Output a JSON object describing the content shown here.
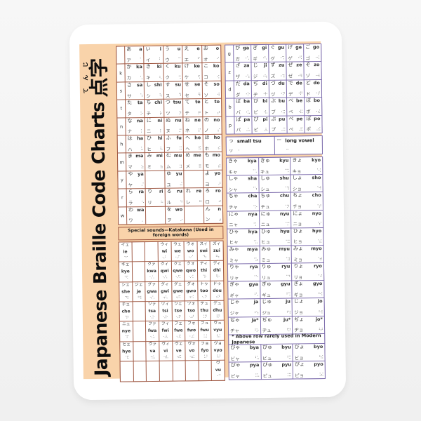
{
  "title": {
    "latin": "Japanese Braille Code Charts",
    "kanji": "点字",
    "furigana": "てんじ"
  },
  "colors": {
    "page_bg": "#f5f5f5",
    "sticker": "#ffffff",
    "poster_bg": "#f9d3aa",
    "left_border": "#a05a45",
    "right_border": "#7f6fae"
  },
  "left_table": {
    "rows": [
      {
        "label": "",
        "cells": [
          {
            "h": "あ",
            "r": "a",
            "k": "ア",
            "b": "⠁"
          },
          {
            "h": "い",
            "r": "i",
            "k": "イ",
            "b": "⠃"
          },
          {
            "h": "う",
            "r": "u",
            "k": "ウ",
            "b": "⠉"
          },
          {
            "h": "え",
            "r": "e",
            "k": "エ",
            "b": "⠋"
          },
          {
            "h": "お",
            "r": "o",
            "k": "オ",
            "b": "⠊"
          }
        ]
      },
      {
        "label": "k",
        "cells": [
          {
            "h": "か",
            "r": "ka",
            "k": "カ",
            "b": "⠡"
          },
          {
            "h": "き",
            "r": "ki",
            "k": "キ",
            "b": "⠣"
          },
          {
            "h": "く",
            "r": "ku",
            "k": "ク",
            "b": "⠩"
          },
          {
            "h": "け",
            "r": "ke",
            "k": "ケ",
            "b": "⠫"
          },
          {
            "h": "こ",
            "r": "ko",
            "k": "コ",
            "b": "⠪"
          }
        ]
      },
      {
        "label": "s",
        "cells": [
          {
            "h": "さ",
            "r": "sa",
            "k": "サ",
            "b": "⠱"
          },
          {
            "h": "し",
            "r": "shi",
            "k": "シ",
            "b": "⠳"
          },
          {
            "h": "す",
            "r": "su",
            "k": "ス",
            "b": "⠹"
          },
          {
            "h": "せ",
            "r": "se",
            "k": "セ",
            "b": "⠻"
          },
          {
            "h": "そ",
            "r": "so",
            "k": "ソ",
            "b": "⠺"
          }
        ]
      },
      {
        "label": "t",
        "cells": [
          {
            "h": "た",
            "r": "ta",
            "k": "タ",
            "b": "⠕"
          },
          {
            "h": "ち",
            "r": "chi",
            "k": "チ",
            "b": "⠗"
          },
          {
            "h": "つ",
            "r": "tsu",
            "k": "ツ",
            "b": "⠝"
          },
          {
            "h": "て",
            "r": "te",
            "k": "テ",
            "b": "⠟"
          },
          {
            "h": "と",
            "r": "to",
            "k": "ト",
            "b": "⠞"
          }
        ]
      },
      {
        "label": "n",
        "cells": [
          {
            "h": "な",
            "r": "na",
            "k": "ナ",
            "b": "⠅"
          },
          {
            "h": "に",
            "r": "ni",
            "k": "ニ",
            "b": "⠇"
          },
          {
            "h": "ぬ",
            "r": "nu",
            "k": "ヌ",
            "b": "⠍"
          },
          {
            "h": "ね",
            "r": "ne",
            "k": "ネ",
            "b": "⠏"
          },
          {
            "h": "の",
            "r": "no",
            "k": "ノ",
            "b": "⠎"
          }
        ]
      },
      {
        "label": "h",
        "cells": [
          {
            "h": "は",
            "r": "ha",
            "k": "ハ",
            "b": "⠥"
          },
          {
            "h": "ひ",
            "r": "hi",
            "k": "ヒ",
            "b": "⠧"
          },
          {
            "h": "ふ",
            "r": "fu",
            "k": "フ",
            "b": "⠭"
          },
          {
            "h": "へ",
            "r": "he",
            "k": "ヘ",
            "b": "⠯"
          },
          {
            "h": "ほ",
            "r": "ho",
            "k": "ホ",
            "b": "⠮"
          }
        ]
      },
      {
        "label": "m",
        "cells": [
          {
            "h": "ま",
            "r": "ma",
            "k": "マ",
            "b": "⠵"
          },
          {
            "h": "み",
            "r": "mi",
            "k": "ミ",
            "b": "⠷"
          },
          {
            "h": "む",
            "r": "mu",
            "k": "ム",
            "b": "⠽"
          },
          {
            "h": "め",
            "r": "me",
            "k": "メ",
            "b": "⠿"
          },
          {
            "h": "も",
            "r": "mo",
            "k": "モ",
            "b": "⠾"
          }
        ]
      },
      {
        "label": "y",
        "cells": [
          {
            "h": "や",
            "r": "ya",
            "k": "ヤ",
            "b": "⠌"
          },
          null,
          {
            "h": "ゆ",
            "r": "yu",
            "k": "ユ",
            "b": "⠬"
          },
          null,
          {
            "h": "よ",
            "r": "yo",
            "k": "ヨ",
            "b": "⠜"
          }
        ]
      },
      {
        "label": "r",
        "cells": [
          {
            "h": "ら",
            "r": "ra",
            "k": "ラ",
            "b": "⠑"
          },
          {
            "h": "り",
            "r": "ri",
            "k": "リ",
            "b": "⠓"
          },
          {
            "h": "る",
            "r": "ru",
            "k": "ル",
            "b": "⠙"
          },
          {
            "h": "れ",
            "r": "re",
            "k": "レ",
            "b": "⠛"
          },
          {
            "h": "ろ",
            "r": "ro",
            "k": "ロ",
            "b": "⠚"
          }
        ]
      },
      {
        "label": "w",
        "cells": [
          {
            "h": "わ",
            "r": "wa",
            "k": "ワ",
            "b": "⠄"
          },
          null,
          {
            "h": "を",
            "r": "wo",
            "k": "ヲ",
            "b": "⠔"
          },
          null,
          {
            "h": "ん",
            "r": "n",
            "k": "ン",
            "b": "⠴"
          }
        ]
      }
    ]
  },
  "voiced_table": {
    "rows": [
      {
        "label": "g",
        "cells": [
          {
            "h": "が",
            "r": "ga",
            "k": "ガ",
            "b": "⠐⠡"
          },
          {
            "h": "ぎ",
            "r": "gi",
            "k": "ギ",
            "b": "⠐⠣"
          },
          {
            "h": "ぐ",
            "r": "gu",
            "k": "グ",
            "b": "⠐⠩"
          },
          {
            "h": "げ",
            "r": "ge",
            "k": "ゲ",
            "b": "⠐⠫"
          },
          {
            "h": "ご",
            "r": "go",
            "k": "ゴ",
            "b": "⠐⠪"
          }
        ]
      },
      {
        "label": "z",
        "cells": [
          {
            "h": "ざ",
            "r": "za",
            "k": "ザ",
            "b": "⠐⠱"
          },
          {
            "h": "じ",
            "r": "ji",
            "k": "ジ",
            "b": "⠐⠳"
          },
          {
            "h": "ず",
            "r": "zu",
            "k": "ズ",
            "b": "⠐⠹"
          },
          {
            "h": "ぜ",
            "r": "ze",
            "k": "ゼ",
            "b": "⠐⠻"
          },
          {
            "h": "ぞ",
            "r": "zo",
            "k": "ゾ",
            "b": "⠐⠺"
          }
        ]
      },
      {
        "label": "d",
        "cells": [
          {
            "h": "だ",
            "r": "da",
            "k": "ダ",
            "b": "⠐⠕"
          },
          {
            "h": "ぢ",
            "r": "di",
            "k": "ヂ",
            "b": "⠐⠗"
          },
          {
            "h": "づ",
            "r": "du",
            "k": "ヅ",
            "b": "⠐⠝"
          },
          {
            "h": "で",
            "r": "de",
            "k": "デ",
            "b": "⠐⠟"
          },
          {
            "h": "ど",
            "r": "do",
            "k": "ド",
            "b": "⠐⠞"
          }
        ]
      },
      {
        "label": "b",
        "cells": [
          {
            "h": "ば",
            "r": "ba",
            "k": "バ",
            "b": "⠐⠥"
          },
          {
            "h": "び",
            "r": "bi",
            "k": "ビ",
            "b": "⠐⠧"
          },
          {
            "h": "ぶ",
            "r": "bu",
            "k": "ブ",
            "b": "⠐⠭"
          },
          {
            "h": "べ",
            "r": "be",
            "k": "ベ",
            "b": "⠐⠯"
          },
          {
            "h": "ぼ",
            "r": "bo",
            "k": "ボ",
            "b": "⠐⠮"
          }
        ]
      },
      {
        "label": "p",
        "cells": [
          {
            "h": "ぱ",
            "r": "pa",
            "k": "パ",
            "b": "⠠⠥"
          },
          {
            "h": "ぴ",
            "r": "pi",
            "k": "ピ",
            "b": "⠠⠧"
          },
          {
            "h": "ぷ",
            "r": "pu",
            "k": "プ",
            "b": "⠠⠭"
          },
          {
            "h": "ぺ",
            "r": "pe",
            "k": "ペ",
            "b": "⠠⠯"
          },
          {
            "h": "ぽ",
            "r": "po",
            "k": "ポ",
            "b": "⠠⠮"
          }
        ]
      }
    ]
  },
  "sokuon_row": {
    "small_tsu": {
      "h": "っ",
      "k": "ッ",
      "b": "⠂",
      "label": "small tsu"
    },
    "long_vowel": {
      "h": "ー",
      "k": "",
      "b": "⠒",
      "label": "long vowel"
    }
  },
  "yoon_table": {
    "note": "* Above row rarely used in Modern Japanese",
    "note_row_index": 10,
    "rows": [
      [
        {
          "h": "きゃ",
          "r": "kya",
          "k": "キャ",
          "b": "⠈⠡"
        },
        {
          "h": "きゅ",
          "r": "kyu",
          "k": "キュ",
          "b": "⠈⠩"
        },
        {
          "h": "きょ",
          "r": "kyo",
          "k": "キョ",
          "b": "⠈⠪"
        }
      ],
      [
        {
          "h": "しゃ",
          "r": "sha",
          "k": "シャ",
          "b": "⠈⠱"
        },
        {
          "h": "しゅ",
          "r": "shu",
          "k": "シュ",
          "b": "⠈⠹"
        },
        {
          "h": "しょ",
          "r": "sho",
          "k": "ショ",
          "b": "⠈⠺"
        }
      ],
      [
        {
          "h": "ちゃ",
          "r": "cha",
          "k": "チャ",
          "b": "⠈⠕"
        },
        {
          "h": "ちゅ",
          "r": "chu",
          "k": "チュ",
          "b": "⠈⠝"
        },
        {
          "h": "ちょ",
          "r": "cho",
          "k": "チョ",
          "b": "⠈⠞"
        }
      ],
      [
        {
          "h": "にゃ",
          "r": "nya",
          "k": "ニャ",
          "b": "⠈⠅"
        },
        {
          "h": "にゅ",
          "r": "nyu",
          "k": "ニュ",
          "b": "⠈⠍"
        },
        {
          "h": "にょ",
          "r": "nyo",
          "k": "ニョ",
          "b": "⠈⠎"
        }
      ],
      [
        {
          "h": "ひゃ",
          "r": "hya",
          "k": "ヒャ",
          "b": "⠈⠥"
        },
        {
          "h": "ひゅ",
          "r": "hyu",
          "k": "ヒュ",
          "b": "⠈⠭"
        },
        {
          "h": "ひょ",
          "r": "hyo",
          "k": "ヒョ",
          "b": "⠈⠮"
        }
      ],
      [
        {
          "h": "みゃ",
          "r": "mya",
          "k": "ミャ",
          "b": "⠈⠵"
        },
        {
          "h": "みゅ",
          "r": "myu",
          "k": "ミュ",
          "b": "⠈⠽"
        },
        {
          "h": "みょ",
          "r": "myo",
          "k": "ミョ",
          "b": "⠈⠾"
        }
      ],
      [
        {
          "h": "りゃ",
          "r": "rya",
          "k": "リャ",
          "b": "⠈⠑"
        },
        {
          "h": "りゅ",
          "r": "ryu",
          "k": "リュ",
          "b": "⠈⠙"
        },
        {
          "h": "りょ",
          "r": "ryo",
          "k": "リョ",
          "b": "⠈⠚"
        }
      ],
      [
        {
          "h": "ぎゃ",
          "r": "gya",
          "k": "ギャ",
          "b": "⠘⠡"
        },
        {
          "h": "ぎゅ",
          "r": "gyu",
          "k": "ギュ",
          "b": "⠘⠩"
        },
        {
          "h": "ぎょ",
          "r": "gyo",
          "k": "ギョ",
          "b": "⠘⠪"
        }
      ],
      [
        {
          "h": "じゃ",
          "r": "ja",
          "k": "ジャ",
          "b": "⠘⠱"
        },
        {
          "h": "じゅ",
          "r": "ju",
          "k": "ジュ",
          "b": "⠘⠹"
        },
        {
          "h": "じょ",
          "r": "jo",
          "k": "ジョ",
          "b": "⠘⠺"
        }
      ],
      [
        {
          "h": "ぢゃ",
          "r": "ja*",
          "k": "ヂャ",
          "b": "⠘⠕"
        },
        {
          "h": "ぢゅ",
          "r": "ju*",
          "k": "ヂュ",
          "b": "⠘⠝"
        },
        {
          "h": "ぢょ",
          "r": "jo*",
          "k": "ヂョ",
          "b": "⠘⠞"
        }
      ],
      [
        {
          "h": "びゃ",
          "r": "bya",
          "k": "ビャ",
          "b": "⠘⠥"
        },
        {
          "h": "びゅ",
          "r": "byu",
          "k": "ビュ",
          "b": "⠘⠭"
        },
        {
          "h": "びょ",
          "r": "byo",
          "k": "ビョ",
          "b": "⠘⠮"
        }
      ],
      [
        {
          "h": "ぴゃ",
          "r": "pya",
          "k": "ピャ",
          "b": "⠨⠥"
        },
        {
          "h": "ぴゅ",
          "r": "pyu",
          "k": "ピュ",
          "b": "⠨⠭"
        },
        {
          "h": "ぴょ",
          "r": "pyo",
          "k": "ピョ",
          "b": "⠨⠮"
        }
      ]
    ]
  },
  "special_section": {
    "header": "Special sounds—Katakana (Used in foreign words)",
    "rows": [
      [
        {
          "k": "イェ",
          "r": "ie",
          "b": "⠈⠋"
        },
        null,
        null,
        {
          "k": "ウィ",
          "r": "wi",
          "b": "⠢⠃"
        },
        {
          "k": "ウェ",
          "r": "we",
          "b": "⠢⠋"
        },
        {
          "k": "ウォ",
          "r": "wo",
          "b": "⠢⠊"
        },
        {
          "k": "スィ",
          "r": "swi",
          "b": "⠈⠳"
        },
        {
          "k": "ズィ",
          "r": "zui",
          "b": "⠘⠳"
        }
      ],
      [
        {
          "k": "キェ",
          "r": "kye",
          "b": "⠈⠫"
        },
        null,
        {
          "k": "クァ",
          "r": "kwa",
          "b": "⠢⠡"
        },
        {
          "k": "クィ",
          "r": "qwi",
          "b": "⠢⠣"
        },
        {
          "k": "クェ",
          "r": "qwe",
          "b": "⠢⠫"
        },
        {
          "k": "クォ",
          "r": "qwo",
          "b": "⠢⠪"
        },
        {
          "k": "ティ",
          "r": "thi",
          "b": "⠈⠗"
        },
        {
          "k": "ディ",
          "r": "dhi",
          "b": "⠘⠗"
        }
      ],
      [
        {
          "k": "シェ",
          "r": "she",
          "b": "⠈⠻"
        },
        {
          "k": "ジェ",
          "r": "je",
          "b": "⠘⠻"
        },
        {
          "k": "グァ",
          "r": "gwa",
          "b": "⠲⠡"
        },
        {
          "k": "グィ",
          "r": "gwi",
          "b": "⠲⠣"
        },
        {
          "k": "グェ",
          "r": "gwe",
          "b": "⠲⠫"
        },
        {
          "k": "グォ",
          "r": "gwo",
          "b": "⠲⠪"
        },
        {
          "k": "トゥ",
          "r": "too",
          "b": "⠢⠝"
        },
        {
          "k": "ドゥ",
          "r": "dou",
          "b": "⠰⠝"
        }
      ],
      [
        {
          "k": "チェ",
          "r": "che",
          "b": "⠈⠟"
        },
        null,
        {
          "k": "ツァ",
          "r": "tsa",
          "b": "⠢⠕"
        },
        {
          "k": "ツィ",
          "r": "tsi",
          "b": "⠢⠗"
        },
        {
          "k": "ツェ",
          "r": "tse",
          "b": "⠢⠟"
        },
        {
          "k": "ツォ",
          "r": "tso",
          "b": "⠢⠞"
        },
        {
          "k": "テュ",
          "r": "thu",
          "b": "⠨⠝"
        },
        {
          "k": "デュ",
          "r": "dhu",
          "b": "⠸⠝"
        }
      ],
      [
        {
          "k": "ニェ",
          "r": "nye",
          "b": "⠈⠏"
        },
        null,
        {
          "k": "ファ",
          "r": "fwa",
          "b": "⠢⠥"
        },
        {
          "k": "フィ",
          "r": "fwi",
          "b": "⠢⠧"
        },
        {
          "k": "フェ",
          "r": "fwe",
          "b": "⠢⠯"
        },
        {
          "k": "フォ",
          "r": "fwo",
          "b": "⠢⠮"
        },
        {
          "k": "フュ",
          "r": "fwu",
          "b": "⠨⠬"
        },
        {
          "k": "ヴュ",
          "r": "vyu",
          "b": "⠸⠬"
        }
      ],
      [
        {
          "k": "ヒェ",
          "r": "hye",
          "b": "⠈⠯"
        },
        null,
        {
          "k": "ヴァ",
          "r": "va",
          "b": "⠲⠥"
        },
        {
          "k": "ヴィ",
          "r": "vi",
          "b": "⠲⠧"
        },
        {
          "k": "ヴェ",
          "r": "ve",
          "b": "⠲⠯"
        },
        {
          "k": "ヴォ",
          "r": "vo",
          "b": "⠲⠮"
        },
        {
          "k": "フョ",
          "r": "fyo",
          "b": "⠨⠜"
        },
        {
          "k": "ヴョ",
          "r": "vyo",
          "b": "⠸⠜"
        }
      ],
      [
        null,
        null,
        null,
        null,
        null,
        null,
        null,
        {
          "k": "ヴ",
          "r": "vu",
          "b": "⠐⠉"
        }
      ]
    ]
  }
}
